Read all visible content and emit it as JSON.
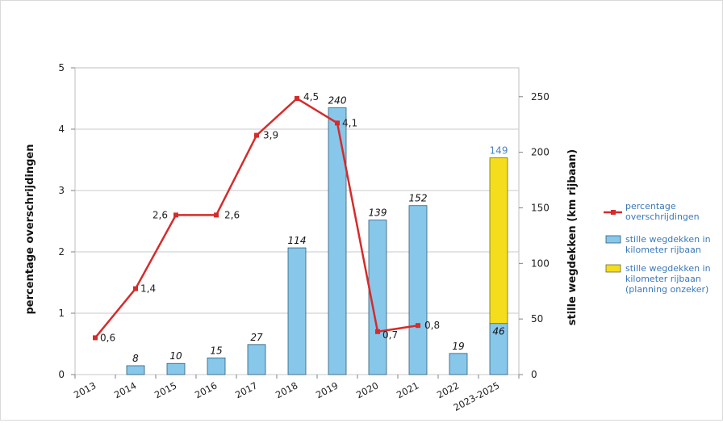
{
  "chart_data": {
    "type": "bar",
    "categories": [
      "2013",
      "2014",
      "2015",
      "2016",
      "2017",
      "2018",
      "2019",
      "2020",
      "2021",
      "2022",
      "2023-2025"
    ],
    "y_left_label": "percentage overschrijdingen",
    "y_right_label": "stille wegdekken (km rijbaan)",
    "y_left_ticks": [
      "0",
      "1",
      "2",
      "3",
      "4",
      "5"
    ],
    "y_right_ticks": [
      "0",
      "50",
      "100",
      "150",
      "200",
      "250"
    ],
    "ylim_left": [
      0,
      5
    ],
    "ylim_right": [
      0,
      276
    ],
    "grid": true,
    "legend_position": "right",
    "series": [
      {
        "name": "percentage overschrijdingen",
        "type": "line",
        "axis": "left",
        "color": "#d62b2b",
        "values": [
          0.6,
          1.4,
          2.6,
          2.6,
          3.9,
          4.5,
          4.1,
          0.7,
          0.8,
          null,
          null
        ],
        "labels": [
          "0,6",
          "1,4",
          "2,6",
          "2,6",
          "3,9",
          "4,5",
          "4,1",
          "0,7",
          "0,8",
          "",
          ""
        ]
      },
      {
        "name": "stille wegdekken in kilometer rijbaan",
        "type": "bar",
        "axis": "right",
        "color": "#87c7ea",
        "values": [
          null,
          8,
          10,
          15,
          27,
          114,
          240,
          139,
          152,
          19,
          46
        ],
        "labels": [
          "",
          "8",
          "10",
          "15",
          "27",
          "114",
          "240",
          "139",
          "152",
          "19",
          "46"
        ]
      },
      {
        "name": "stille wegdekken in kilometer rijbaan (planning onzeker)",
        "type": "bar-stacked",
        "axis": "right",
        "color": "#f3dd1d",
        "values": [
          null,
          null,
          null,
          null,
          null,
          null,
          null,
          null,
          null,
          null,
          149
        ],
        "total_labels": [
          "",
          "",
          "",
          "",
          "",
          "",
          "",
          "",
          "",
          "",
          "149"
        ]
      }
    ]
  },
  "legend": [
    {
      "label": "percentage overschrijdingen",
      "color": "#d62b2b"
    },
    {
      "label": "stille wegdekken in kilometer rijbaan",
      "color": "#87c7ea"
    },
    {
      "label": "stille wegdekken in kilometer rijbaan (planning onzeker)",
      "color": "#f3dd1d"
    }
  ]
}
